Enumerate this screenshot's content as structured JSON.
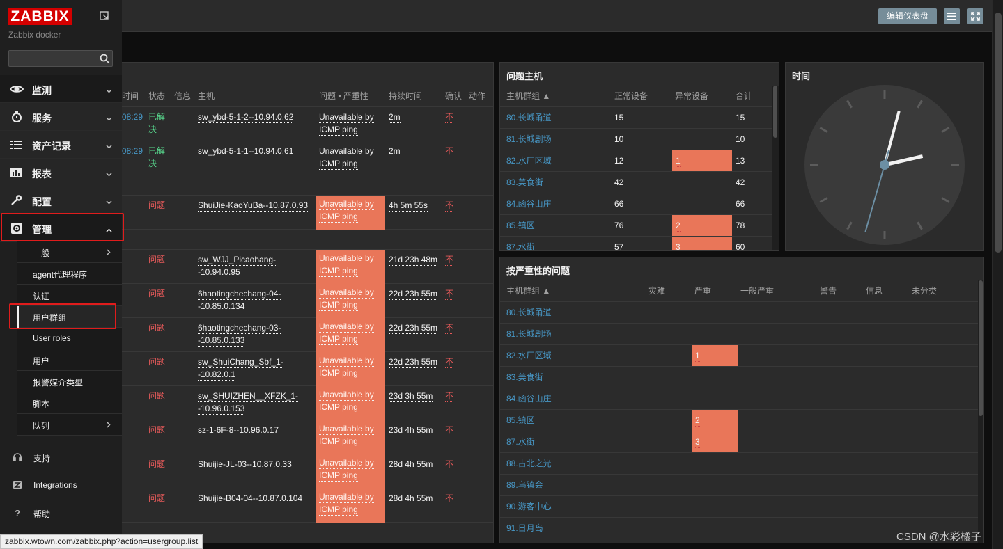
{
  "header": {
    "edit_dashboard": "编辑仪表盘",
    "menu_icon": "menu-icon",
    "fullscreen_icon": "fullscreen-icon"
  },
  "sidebar": {
    "logo": "ZABBIX",
    "subtitle": "Zabbix docker",
    "search_value": "",
    "menu": [
      {
        "label": "监测",
        "icon": "eye-icon"
      },
      {
        "label": "服务",
        "icon": "stopwatch-icon"
      },
      {
        "label": "资产记录",
        "icon": "list-icon"
      },
      {
        "label": "报表",
        "icon": "chart-icon"
      },
      {
        "label": "配置",
        "icon": "wrench-icon"
      },
      {
        "label": "管理",
        "icon": "gear-icon"
      }
    ],
    "submenu": [
      {
        "label": "一般"
      },
      {
        "label": "agent代理程序"
      },
      {
        "label": "认证"
      },
      {
        "label": "用户群组"
      },
      {
        "label": "User roles"
      },
      {
        "label": "用户"
      },
      {
        "label": "报警媒介类型"
      },
      {
        "label": "脚本"
      },
      {
        "label": "队列"
      }
    ],
    "bottom": [
      {
        "label": "支持",
        "icon": "headset-icon"
      },
      {
        "label": "Integrations",
        "icon": "z-icon"
      },
      {
        "label": "帮助",
        "icon": "question-icon"
      }
    ]
  },
  "problems": {
    "headers": {
      "time": "时间",
      "status": "状态",
      "info": "信息",
      "host": "主机",
      "problem": "问题 • 严重性",
      "duration": "持续时间",
      "ack": "确认",
      "actions": "动作"
    },
    "rows": [
      {
        "time": "08:29",
        "status": "已解决",
        "host": "sw_ybd-5-1-2--10.94.0.62",
        "problem": "Unavailable by ICMP ping",
        "duration": "2m",
        "ack": "不",
        "severity": false
      },
      {
        "time": "08:29",
        "status": "已解决",
        "host": "sw_ybd-5-1-1--10.94.0.61",
        "problem": "Unavailable by ICMP ping",
        "duration": "2m",
        "ack": "不",
        "severity": false
      },
      {
        "time": "",
        "status": "问题",
        "host": "ShuiJie-KaoYuBa--10.87.0.93",
        "problem": "Unavailable by ICMP ping",
        "duration": "4h 5m 55s",
        "ack": "不",
        "severity": true
      },
      {
        "time": "",
        "status": "问题",
        "host": "sw_WJJ_Picaohang--10.94.0.95",
        "problem": "Unavailable by ICMP ping",
        "duration": "21d 23h 48m",
        "ack": "不",
        "severity": true
      },
      {
        "time": "",
        "status": "问题",
        "host": "6haotingchechang-04--10.85.0.134",
        "problem": "Unavailable by ICMP ping",
        "duration": "22d 23h 55m",
        "ack": "不",
        "severity": true
      },
      {
        "time": "",
        "status": "问题",
        "host": "6haotingchechang-03--10.85.0.133",
        "problem": "Unavailable by ICMP ping",
        "duration": "22d 23h 55m",
        "ack": "不",
        "severity": true
      },
      {
        "time": "",
        "status": "问题",
        "host": "sw_ShuiChang_Sbf_1--10.82.0.1",
        "problem": "Unavailable by ICMP ping",
        "duration": "22d 23h 55m",
        "ack": "不",
        "severity": true
      },
      {
        "time": "",
        "status": "问题",
        "host": "sw_SHUIZHEN__XFZK_1--10.96.0.153",
        "problem": "Unavailable by ICMP ping",
        "duration": "23d 3h 55m",
        "ack": "不",
        "severity": true
      },
      {
        "time": "",
        "status": "问题",
        "host": "sz-1-6F-8--10.96.0.17",
        "problem": "Unavailable by ICMP ping",
        "duration": "23d 4h 55m",
        "ack": "不",
        "severity": true
      },
      {
        "time": "",
        "status": "问题",
        "host": "Shuijie-JL-03--10.87.0.33",
        "problem": "Unavailable by ICMP ping",
        "duration": "28d 4h 55m",
        "ack": "不",
        "severity": true
      },
      {
        "time": "",
        "status": "问题",
        "host": "Shuijie-B04-04--10.87.0.104",
        "problem": "Unavailable by ICMP ping",
        "duration": "28d 4h 55m",
        "ack": "不",
        "severity": true
      }
    ]
  },
  "problem_hosts": {
    "title": "问题主机",
    "headers": {
      "group": "主机群组 ▲",
      "ok": "正常设备",
      "bad": "异常设备",
      "total": "合计"
    },
    "rows": [
      {
        "group": "80.长城甬道",
        "ok": "15",
        "bad": "",
        "total": "15"
      },
      {
        "group": "81.长城剧场",
        "ok": "10",
        "bad": "",
        "total": "10"
      },
      {
        "group": "82.水厂区域",
        "ok": "12",
        "bad": "1",
        "total": "13"
      },
      {
        "group": "83.美食街",
        "ok": "42",
        "bad": "",
        "total": "42"
      },
      {
        "group": "84.函谷山庄",
        "ok": "66",
        "bad": "",
        "total": "66"
      },
      {
        "group": "85.镇区",
        "ok": "76",
        "bad": "2",
        "total": "78"
      },
      {
        "group": "87.水街",
        "ok": "57",
        "bad": "3",
        "total": "60"
      }
    ]
  },
  "clock": {
    "title": "时间",
    "hour_angle": 77,
    "minute_angle": 15,
    "second_angle": 196
  },
  "severity": {
    "title": "按严重性的问题",
    "headers": {
      "group": "主机群组 ▲",
      "disaster": "灾难",
      "high": "严重",
      "average": "一般严重",
      "warning": "警告",
      "info": "信息",
      "nc": "未分类"
    },
    "rows": [
      {
        "group": "80.长城甬道",
        "high": ""
      },
      {
        "group": "81.长城剧场",
        "high": ""
      },
      {
        "group": "82.水厂区域",
        "high": "1"
      },
      {
        "group": "83.美食街",
        "high": ""
      },
      {
        "group": "84.函谷山庄",
        "high": ""
      },
      {
        "group": "85.镇区",
        "high": "2"
      },
      {
        "group": "87.水街",
        "high": "3"
      },
      {
        "group": "88.古北之光",
        "high": ""
      },
      {
        "group": "89.乌镇会",
        "high": ""
      },
      {
        "group": "90.游客中心",
        "high": ""
      },
      {
        "group": "91.日月岛",
        "high": ""
      }
    ]
  },
  "statusbar": "zabbix.wtown.com/zabbix.php?action=usergroup.list",
  "watermark": "CSDN @水彩橘子"
}
